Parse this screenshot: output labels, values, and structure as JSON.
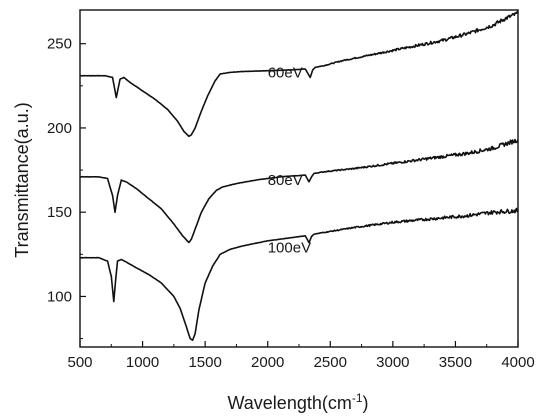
{
  "chart_data": {
    "type": "line",
    "xlabel": "Wavelength(cm",
    "xlabel_sup": "-1",
    "xlabel_close": ")",
    "ylabel": "Transmittance(a.u.)",
    "xlim": [
      500,
      4000
    ],
    "ylim": [
      70,
      270
    ],
    "xticks": [
      500,
      1000,
      1500,
      2000,
      2500,
      3000,
      3500,
      4000
    ],
    "yticks": [
      100,
      150,
      200,
      250
    ],
    "grid": false,
    "line_color": "#111111",
    "series": [
      {
        "name": "60eV",
        "label_at": [
          2000,
          230
        ],
        "x": [
          500,
          700,
          760,
          790,
          820,
          850,
          900,
          1000,
          1100,
          1200,
          1280,
          1330,
          1370,
          1390,
          1420,
          1470,
          1520,
          1580,
          1620,
          1700,
          1800,
          2000,
          2200,
          2300,
          2340,
          2360,
          2380,
          2450,
          2600,
          2800,
          3000,
          3200,
          3400,
          3600,
          3800,
          3900,
          4000
        ],
        "y": [
          231,
          231,
          230,
          218,
          229,
          230,
          227,
          222,
          217,
          211,
          204,
          198,
          195,
          196,
          200,
          210,
          219,
          228,
          232,
          233,
          233.5,
          234,
          234.5,
          235,
          230,
          234.5,
          236,
          237,
          240,
          243,
          246,
          249,
          252,
          256,
          261,
          265,
          268
        ]
      },
      {
        "name": "80eV",
        "label_at": [
          2000,
          166
        ],
        "x": [
          500,
          650,
          720,
          760,
          780,
          800,
          830,
          870,
          950,
          1050,
          1150,
          1250,
          1320,
          1370,
          1390,
          1420,
          1470,
          1530,
          1590,
          1640,
          1750,
          1900,
          2100,
          2300,
          2330,
          2350,
          2370,
          2450,
          2700,
          3000,
          3300,
          3600,
          3800,
          4000
        ],
        "y": [
          171,
          171,
          170,
          160,
          150,
          160,
          169,
          168,
          164,
          158,
          152,
          143,
          136,
          132,
          134,
          140,
          150,
          158,
          163,
          165,
          167,
          169,
          171,
          172,
          168,
          171,
          173,
          174,
          176,
          179,
          182,
          185,
          188,
          193
        ]
      },
      {
        "name": "100eV",
        "label_at": [
          2000,
          126
        ],
        "x": [
          500,
          650,
          720,
          750,
          770,
          785,
          800,
          830,
          880,
          950,
          1050,
          1150,
          1250,
          1300,
          1350,
          1380,
          1400,
          1420,
          1450,
          1500,
          1560,
          1620,
          1700,
          1800,
          2000,
          2200,
          2300,
          2330,
          2350,
          2370,
          2450,
          2700,
          3000,
          3300,
          3600,
          3800,
          4000
        ],
        "y": [
          123,
          123,
          121,
          112,
          97,
          110,
          121,
          122,
          120,
          117,
          113,
          108,
          100,
          93,
          82,
          75,
          74,
          78,
          92,
          108,
          118,
          125,
          128,
          130,
          133,
          135,
          136,
          132,
          135.5,
          137,
          138,
          141,
          144,
          146,
          148,
          150,
          151
        ]
      }
    ]
  }
}
